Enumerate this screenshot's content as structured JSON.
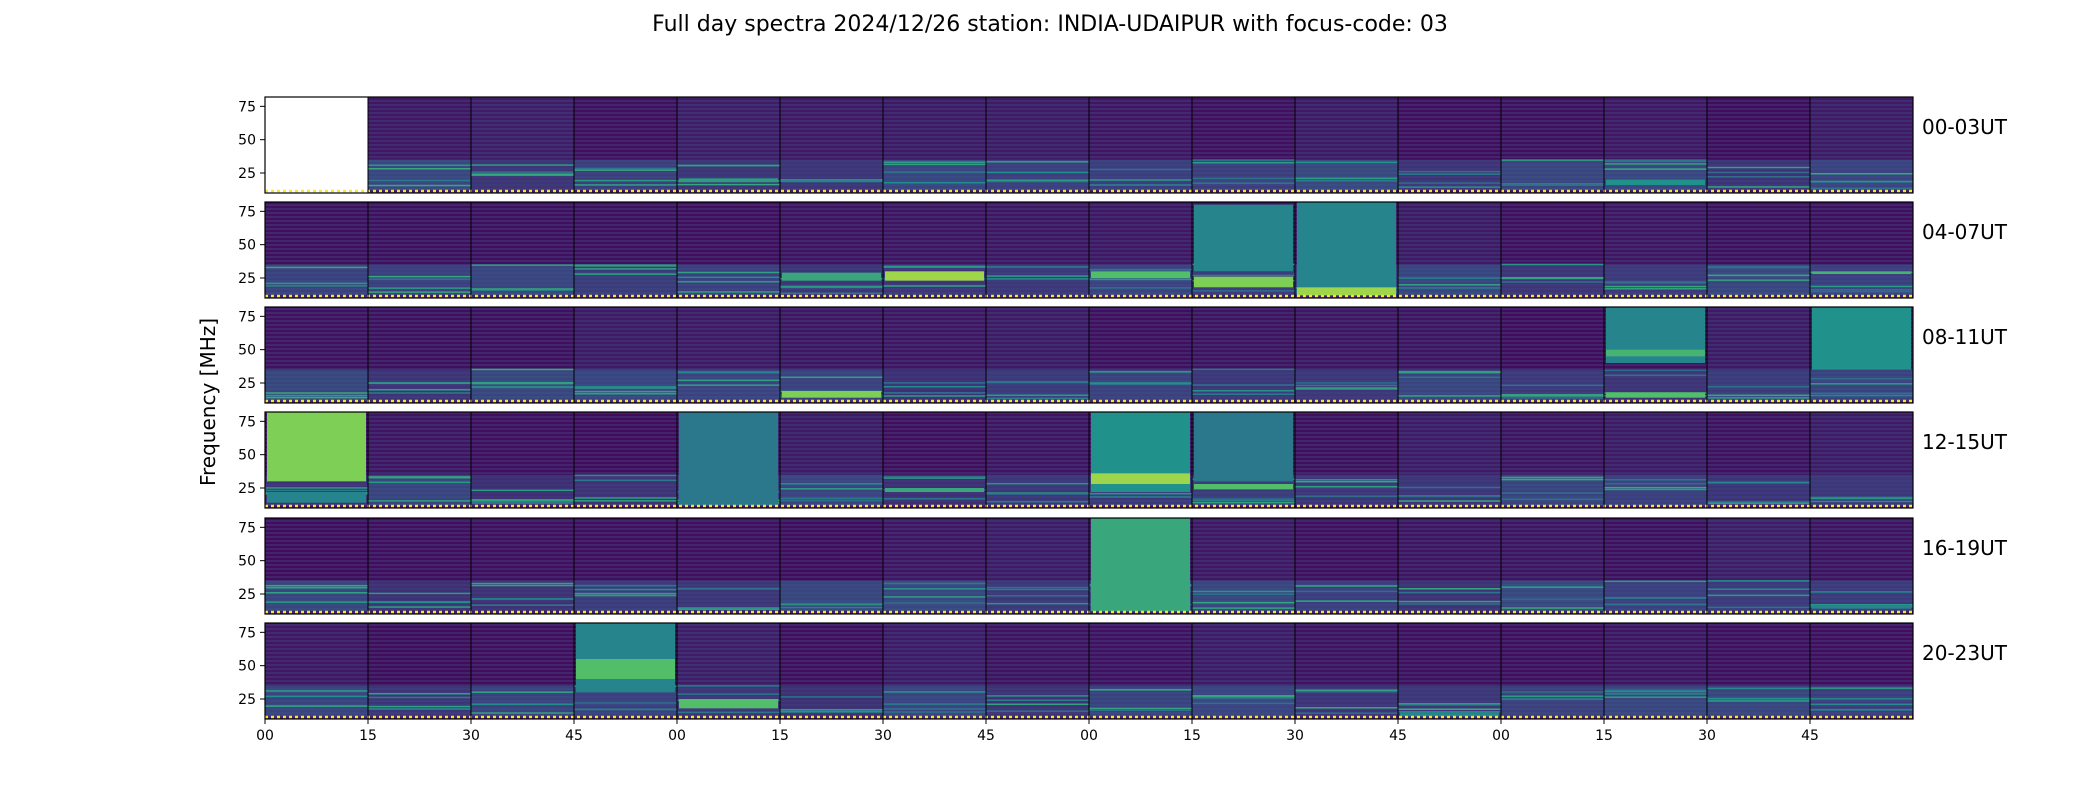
{
  "chart_data": {
    "type": "heatmap",
    "title": "Full day spectra 2024/12/26 station: INDIA-UDAIPUR with focus-code: 03",
    "ylabel": "Frequency [MHz]",
    "xlabel": "",
    "y_ticks": [
      25,
      50,
      75
    ],
    "ylim": [
      10,
      82
    ],
    "colormap": "viridis",
    "colors": {
      "low": "#440154",
      "mid_low": "#3b528b",
      "mid": "#21918c",
      "mid_high": "#5ec962",
      "high": "#fde725",
      "marker_dots": "#fde725"
    },
    "x_tick_labels": [
      "00",
      "15",
      "30",
      "45",
      "00",
      "15",
      "30",
      "45",
      "00",
      "15",
      "30",
      "45",
      "00",
      "15",
      "30",
      "45"
    ],
    "panels_per_row": 16,
    "panel_duration_minutes": 15,
    "rows": [
      {
        "label": "00-03UT",
        "missing_panels": [
          0
        ],
        "bursts": [
          {
            "panel": 4,
            "ymin": 18,
            "ymax": 21,
            "level": 0.55
          },
          {
            "panel": 5,
            "ymin": 18,
            "ymax": 20,
            "level": 0.45
          },
          {
            "panel": 13,
            "ymin": 16,
            "ymax": 20,
            "level": 0.5
          }
        ]
      },
      {
        "label": "04-07UT",
        "missing_panels": [],
        "bursts": [
          {
            "panel": 5,
            "ymin": 23,
            "ymax": 29,
            "level": 0.6
          },
          {
            "panel": 6,
            "ymin": 23,
            "ymax": 30,
            "level": 0.85
          },
          {
            "panel": 8,
            "ymin": 25,
            "ymax": 30,
            "level": 0.7
          },
          {
            "panel": 9,
            "ymin": 18,
            "ymax": 26,
            "level": 0.8
          },
          {
            "panel": 9,
            "ymin": 30,
            "ymax": 80,
            "level": 0.45
          },
          {
            "panel": 10,
            "ymin": 12,
            "ymax": 82,
            "level": 0.45
          },
          {
            "panel": 10,
            "ymin": 12,
            "ymax": 18,
            "level": 0.85
          },
          {
            "panel": 15,
            "ymin": 28,
            "ymax": 30,
            "level": 0.65
          }
        ]
      },
      {
        "label": "08-11UT",
        "missing_panels": [],
        "bursts": [
          {
            "panel": 5,
            "ymin": 14,
            "ymax": 19,
            "level": 0.8
          },
          {
            "panel": 13,
            "ymin": 40,
            "ymax": 82,
            "level": 0.45
          },
          {
            "panel": 13,
            "ymin": 45,
            "ymax": 50,
            "level": 0.65
          },
          {
            "panel": 13,
            "ymin": 14,
            "ymax": 18,
            "level": 0.7
          },
          {
            "panel": 15,
            "ymin": 35,
            "ymax": 82,
            "level": 0.5
          }
        ]
      },
      {
        "label": "12-15UT",
        "missing_panels": [],
        "bursts": [
          {
            "panel": 0,
            "ymin": 30,
            "ymax": 82,
            "level": 0.8
          },
          {
            "panel": 0,
            "ymin": 14,
            "ymax": 22,
            "level": 0.45
          },
          {
            "panel": 4,
            "ymin": 12,
            "ymax": 82,
            "level": 0.4
          },
          {
            "panel": 8,
            "ymin": 22,
            "ymax": 82,
            "level": 0.5
          },
          {
            "panel": 8,
            "ymin": 28,
            "ymax": 36,
            "level": 0.85
          },
          {
            "panel": 9,
            "ymin": 30,
            "ymax": 82,
            "level": 0.4
          },
          {
            "panel": 9,
            "ymin": 24,
            "ymax": 28,
            "level": 0.7
          },
          {
            "panel": 6,
            "ymin": 22,
            "ymax": 25,
            "level": 0.6
          }
        ]
      },
      {
        "label": "16-19UT",
        "missing_panels": [],
        "bursts": [
          {
            "panel": 8,
            "ymin": 12,
            "ymax": 82,
            "level": 0.6
          },
          {
            "panel": 15,
            "ymin": 14,
            "ymax": 17,
            "level": 0.45
          }
        ]
      },
      {
        "label": "20-23UT",
        "missing_panels": [],
        "bursts": [
          {
            "panel": 3,
            "ymin": 30,
            "ymax": 82,
            "level": 0.45
          },
          {
            "panel": 3,
            "ymin": 40,
            "ymax": 55,
            "level": 0.7
          },
          {
            "panel": 4,
            "ymin": 18,
            "ymax": 25,
            "level": 0.7
          },
          {
            "panel": 11,
            "ymin": 12,
            "ymax": 16,
            "level": 0.45
          }
        ]
      }
    ]
  }
}
